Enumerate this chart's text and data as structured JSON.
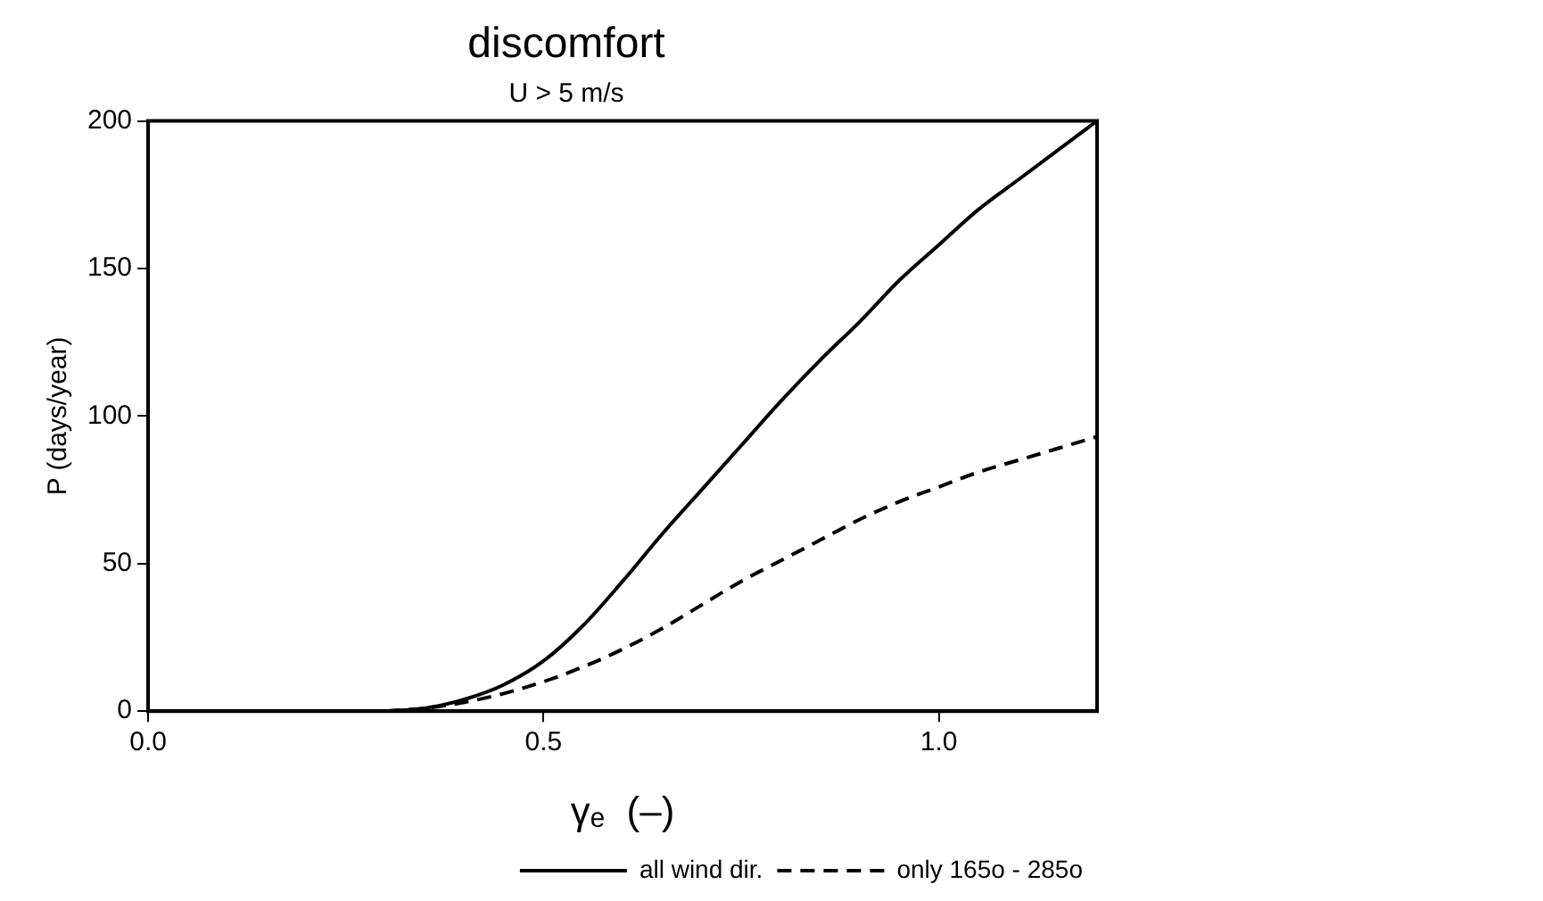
{
  "chart_data": {
    "type": "line",
    "title": "discomfort",
    "subtitle": "U > 5 m/s",
    "xlabel": "γₑ  (–)",
    "ylabel": "P (days/year)",
    "xlim": [
      0,
      1.2
    ],
    "ylim": [
      0,
      200
    ],
    "xticks": [
      {
        "value": 0,
        "label": "0.0"
      },
      {
        "value": 0.5,
        "label": "0.5"
      },
      {
        "value": 1,
        "label": "1.0"
      }
    ],
    "yticks": [
      0,
      50,
      100,
      150,
      200
    ],
    "x": [
      0.3,
      0.35,
      0.4,
      0.45,
      0.5,
      0.55,
      0.6,
      0.65,
      0.7,
      0.75,
      0.8,
      0.85,
      0.9,
      0.95,
      1.0,
      1.05,
      1.1,
      1.15,
      1.2
    ],
    "series": [
      {
        "name": "all wind dir.",
        "color": "#000000",
        "line_style": "solid",
        "values": [
          0,
          1,
          4,
          9,
          17,
          29,
          44,
          60,
          75,
          90,
          105,
          119,
          132,
          146,
          158,
          170,
          180,
          190,
          200
        ]
      },
      {
        "name": "only 165o - 285o",
        "color": "#000000",
        "line_style": "dashed",
        "values": [
          0,
          1,
          3,
          6,
          10,
          15,
          21,
          28,
          36,
          44,
          51,
          58,
          65,
          71,
          76,
          81,
          85,
          89,
          93
        ]
      }
    ],
    "grid": false,
    "legend": "bottom right",
    "marker": "none"
  }
}
